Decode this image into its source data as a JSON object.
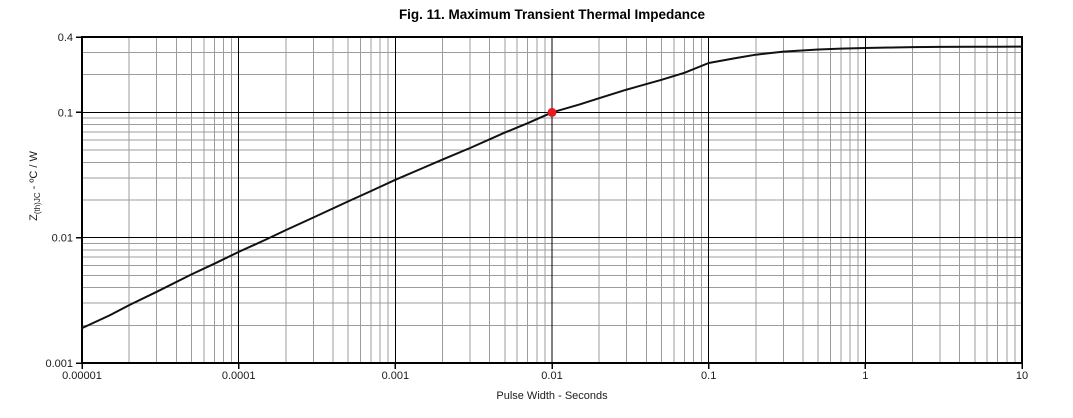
{
  "chart_data": {
    "type": "line",
    "title": "Fig. 11. Maximum Transient Thermal Impedance",
    "xlabel": "Pulse Width - Seconds",
    "ylabel_parts": {
      "prefix": "Z",
      "sub": "(th)JC",
      "suffix": " - ºC / W"
    },
    "xscale": "log",
    "yscale": "log",
    "xlim": [
      1e-05,
      10
    ],
    "ylim": [
      0.001,
      0.4
    ],
    "grid": "major-and-minor-log",
    "legend": "none",
    "x_ticks": [
      1e-05,
      0.0001,
      0.001,
      0.01,
      0.1,
      1,
      10
    ],
    "x_tick_labels": [
      "0.00001",
      "0.0001",
      "0.001",
      "0.01",
      "0.1",
      "1",
      "10"
    ],
    "y_ticks": [
      0.4,
      0.1,
      0.01,
      0.001
    ],
    "y_tick_labels": [
      "0.4",
      "0.1",
      "0.01",
      "0.001"
    ],
    "series": [
      {
        "x": [
          1e-05,
          1.5e-05,
          2e-05,
          3e-05,
          5e-05,
          7e-05,
          0.0001,
          0.00015,
          0.0002,
          0.0003,
          0.0005,
          0.0007,
          0.001,
          0.0015,
          0.002,
          0.003,
          0.005,
          0.007,
          0.01,
          0.015,
          0.02,
          0.03,
          0.05,
          0.07,
          0.1,
          0.15,
          0.2,
          0.3,
          0.5,
          0.7,
          1,
          1.5,
          2,
          3,
          5,
          7,
          10
        ],
        "y": [
          0.0019,
          0.0024,
          0.0029,
          0.0037,
          0.0051,
          0.0062,
          0.0077,
          0.0097,
          0.0115,
          0.0145,
          0.0195,
          0.0236,
          0.029,
          0.036,
          0.042,
          0.052,
          0.069,
          0.082,
          0.1,
          0.116,
          0.13,
          0.152,
          0.182,
          0.207,
          0.248,
          0.272,
          0.289,
          0.306,
          0.318,
          0.323,
          0.327,
          0.33,
          0.332,
          0.3335,
          0.334,
          0.3345,
          0.335
        ]
      }
    ],
    "markers": [
      {
        "x": 0.01,
        "y": 0.1,
        "color": "#e8191f"
      }
    ]
  },
  "colors": {
    "curve": "#111111",
    "marker": "#e8191f",
    "grid_major": "#000000",
    "grid_minor": "#9c9c9c",
    "axis": "#000000",
    "text": "#000000",
    "background": "#ffffff"
  }
}
